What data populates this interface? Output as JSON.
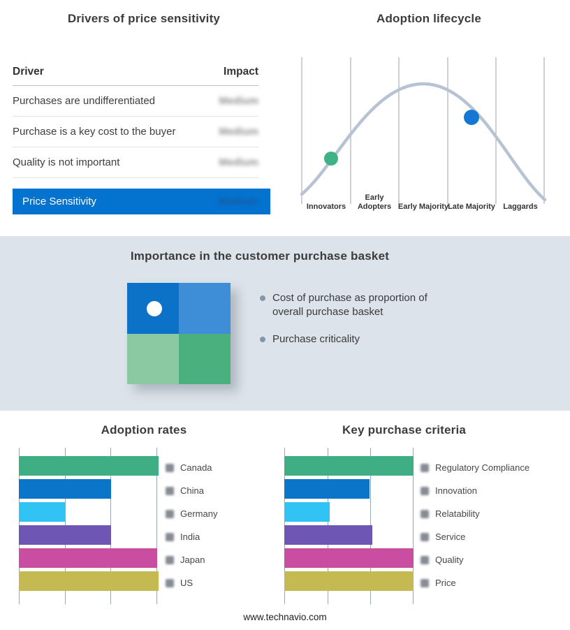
{
  "palette": {
    "green": "#3fae84",
    "blue": "#0a75c9",
    "cyan": "#31c3f3",
    "purple": "#6e56b4",
    "magenta": "#c94da1",
    "olive": "#c5ba52"
  },
  "drivers": {
    "title": "Drivers of price sensitivity",
    "columns": {
      "driver": "Driver",
      "impact": "Impact"
    },
    "rows": [
      {
        "driver": "Purchases are undifferentiated",
        "impact": "Medium"
      },
      {
        "driver": "Purchase is a key cost to the buyer",
        "impact": "Medium"
      },
      {
        "driver": "Quality is not important",
        "impact": "Medium"
      }
    ],
    "highlight": {
      "label": "Price Sensitivity",
      "impact": "Medium",
      "bg": "#0473cf"
    }
  },
  "lifecycle": {
    "title": "Adoption lifecycle",
    "stages": [
      "Innovators",
      "Early Adopters",
      "Early Majority",
      "Late Majority",
      "Laggards"
    ],
    "curve_color": "#b7c3d4",
    "dots": [
      {
        "stage": "Innovators",
        "color": "#3fb287"
      },
      {
        "stage": "Late Majority",
        "color": "#1477d4"
      }
    ]
  },
  "basket": {
    "title": "Importance in the customer purchase basket",
    "bullets": [
      "Cost of purchase as proportion of overall purchase basket",
      "Purchase criticality"
    ],
    "matrix_colors": [
      "#0b72c8",
      "#3d8ed6",
      "#8bc9a3",
      "#49b07e"
    ]
  },
  "bar_charts": [
    {
      "title": "Adoption rates",
      "categories": [
        "Canada",
        "China",
        "Germany",
        "India",
        "Japan",
        "US"
      ],
      "values": [
        100,
        66,
        33,
        66,
        99,
        100
      ],
      "colors": [
        "green",
        "blue",
        "cyan",
        "purple",
        "magenta",
        "olive"
      ]
    },
    {
      "title": "Key purchase criteria",
      "categories": [
        "Regulatory Compliance",
        "Innovation",
        "Relatability",
        "Service",
        "Quality",
        "Price"
      ],
      "values": [
        100,
        66,
        35,
        68,
        100,
        100
      ],
      "colors": [
        "green",
        "blue",
        "cyan",
        "purple",
        "magenta",
        "olive"
      ]
    }
  ],
  "footer": "www.technavio.com",
  "chart_data": [
    {
      "type": "table",
      "title": "Drivers of price sensitivity",
      "columns": [
        "Driver",
        "Impact"
      ],
      "rows": [
        [
          "Purchases are undifferentiated",
          "Medium"
        ],
        [
          "Purchase is a key cost to the buyer",
          "Medium"
        ],
        [
          "Quality is not important",
          "Medium"
        ],
        [
          "Price Sensitivity",
          "Medium"
        ]
      ]
    },
    {
      "type": "line",
      "title": "Adoption lifecycle",
      "subtype": "bell-curve",
      "categories": [
        "Innovators",
        "Early Adopters",
        "Early Majority",
        "Late Majority",
        "Laggards"
      ],
      "annotations": [
        {
          "marker": "dot",
          "color": "#3fb287",
          "position": "Innovators (rising slope)"
        },
        {
          "marker": "dot",
          "color": "#1477d4",
          "position": "Late Majority (falling slope)"
        }
      ],
      "grid": true,
      "legend_position": "none"
    },
    {
      "type": "bar",
      "orientation": "horizontal",
      "title": "Adoption rates",
      "categories": [
        "Canada",
        "China",
        "Germany",
        "India",
        "Japan",
        "US"
      ],
      "values": [
        100,
        66,
        33,
        66,
        99,
        100
      ],
      "xlim": [
        0,
        100
      ],
      "grid": true,
      "legend_position": "right"
    },
    {
      "type": "bar",
      "orientation": "horizontal",
      "title": "Key purchase criteria",
      "categories": [
        "Regulatory Compliance",
        "Innovation",
        "Relatability",
        "Service",
        "Quality",
        "Price"
      ],
      "values": [
        100,
        66,
        35,
        68,
        100,
        100
      ],
      "xlim": [
        0,
        100
      ],
      "grid": true,
      "legend_position": "right"
    }
  ]
}
